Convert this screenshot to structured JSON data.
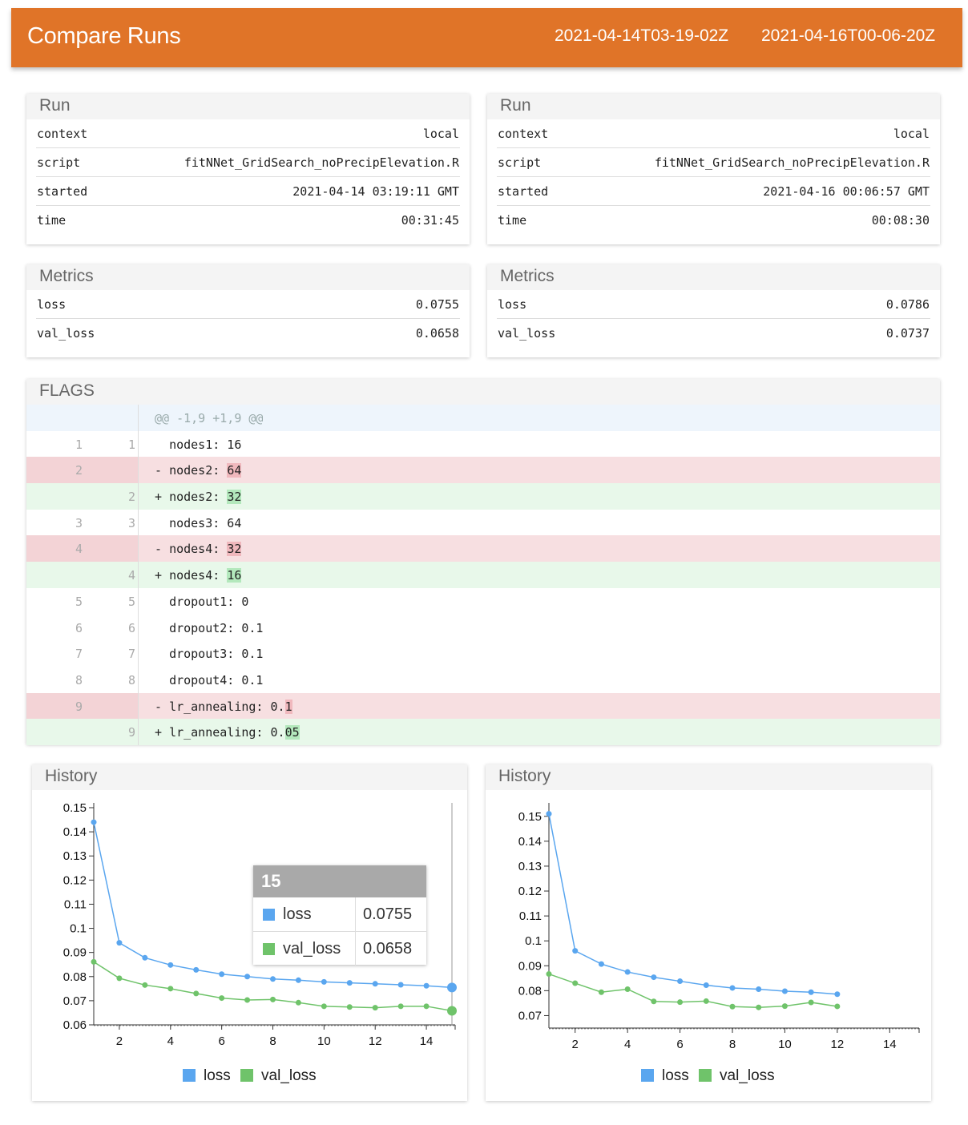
{
  "header": {
    "title": "Compare Runs",
    "run_a_id": "2021-04-14T03-19-02Z",
    "run_b_id": "2021-04-16T00-06-20Z"
  },
  "run_a": {
    "title": "Run",
    "rows": [
      {
        "key": "context",
        "value": "local"
      },
      {
        "key": "script",
        "value": "fitNNet_GridSearch_noPrecipElevation.R"
      },
      {
        "key": "started",
        "value": "2021-04-14 03:19:11 GMT"
      },
      {
        "key": "time",
        "value": "00:31:45"
      }
    ]
  },
  "run_b": {
    "title": "Run",
    "rows": [
      {
        "key": "context",
        "value": "local"
      },
      {
        "key": "script",
        "value": "fitNNet_GridSearch_noPrecipElevation.R"
      },
      {
        "key": "started",
        "value": "2021-04-16 00:06:57 GMT"
      },
      {
        "key": "time",
        "value": "00:08:30"
      }
    ]
  },
  "metrics_a": {
    "title": "Metrics",
    "rows": [
      {
        "key": "loss",
        "value": "0.0755"
      },
      {
        "key": "val_loss",
        "value": "0.0658"
      }
    ]
  },
  "metrics_b": {
    "title": "Metrics",
    "rows": [
      {
        "key": "loss",
        "value": "0.0786"
      },
      {
        "key": "val_loss",
        "value": "0.0737"
      }
    ]
  },
  "flags": {
    "title": "FLAGS",
    "hunk": "@@ -1,9 +1,9 @@",
    "lines": [
      {
        "type": "ctx",
        "old": "1",
        "new": "1",
        "prefix": " ",
        "text": "nodes1: 16",
        "hl": ""
      },
      {
        "type": "del",
        "old": "2",
        "new": "",
        "prefix": "-",
        "text": "nodes2: ",
        "hl": "64"
      },
      {
        "type": "add",
        "old": "",
        "new": "2",
        "prefix": "+",
        "text": "nodes2: ",
        "hl": "32"
      },
      {
        "type": "ctx",
        "old": "3",
        "new": "3",
        "prefix": " ",
        "text": "nodes3: 64",
        "hl": ""
      },
      {
        "type": "del",
        "old": "4",
        "new": "",
        "prefix": "-",
        "text": "nodes4: ",
        "hl": "32"
      },
      {
        "type": "add",
        "old": "",
        "new": "4",
        "prefix": "+",
        "text": "nodes4: ",
        "hl": "16"
      },
      {
        "type": "ctx",
        "old": "5",
        "new": "5",
        "prefix": " ",
        "text": "dropout1: 0",
        "hl": ""
      },
      {
        "type": "ctx",
        "old": "6",
        "new": "6",
        "prefix": " ",
        "text": "dropout2: 0.1",
        "hl": ""
      },
      {
        "type": "ctx",
        "old": "7",
        "new": "7",
        "prefix": " ",
        "text": "dropout3: 0.1",
        "hl": ""
      },
      {
        "type": "ctx",
        "old": "8",
        "new": "8",
        "prefix": " ",
        "text": "dropout4: 0.1",
        "hl": ""
      },
      {
        "type": "del",
        "old": "9",
        "new": "",
        "prefix": "-",
        "text": "lr_annealing: 0.",
        "hl": "1"
      },
      {
        "type": "add",
        "old": "",
        "new": "9",
        "prefix": "+",
        "text": "lr_annealing: 0.",
        "hl": "05"
      }
    ]
  },
  "colors": {
    "header_bg": "#e07428",
    "loss": "#5aa6ef",
    "val_loss": "#6fc36a",
    "diff_removed": "#f7dfe1",
    "diff_added": "#e8f8ea"
  },
  "tooltip": {
    "epoch": "15",
    "rows": [
      {
        "series": "loss",
        "value": "0.0755"
      },
      {
        "series": "val_loss",
        "value": "0.0658"
      }
    ]
  },
  "chart_data": [
    {
      "type": "line",
      "title": "History",
      "xlabel": "",
      "ylabel": "",
      "xlim": [
        1,
        15
      ],
      "ylim": [
        0.06,
        0.15
      ],
      "xticks": [
        2,
        4,
        6,
        8,
        10,
        12,
        14
      ],
      "yticks": [
        0.06,
        0.07,
        0.08,
        0.09,
        0.1,
        0.11,
        0.12,
        0.13,
        0.14,
        0.15
      ],
      "legend": "bottom",
      "x": [
        1,
        2,
        3,
        4,
        5,
        6,
        7,
        8,
        9,
        10,
        11,
        12,
        13,
        14,
        15
      ],
      "series": [
        {
          "name": "loss",
          "values": [
            0.144,
            0.094,
            0.0878,
            0.0848,
            0.0828,
            0.081,
            0.08,
            0.079,
            0.0785,
            0.0778,
            0.0774,
            0.077,
            0.0766,
            0.0762,
            0.0755
          ]
        },
        {
          "name": "val_loss",
          "values": [
            0.0861,
            0.0793,
            0.0765,
            0.075,
            0.073,
            0.0711,
            0.0703,
            0.0705,
            0.0692,
            0.0677,
            0.0674,
            0.0671,
            0.0677,
            0.0677,
            0.0658
          ]
        }
      ]
    },
    {
      "type": "line",
      "title": "History",
      "xlabel": "",
      "ylabel": "",
      "xlim": [
        1,
        15
      ],
      "ylim": [
        0.065,
        0.157
      ],
      "xticks": [
        2,
        4,
        6,
        8,
        10,
        12,
        14
      ],
      "yticks": [
        0.07,
        0.08,
        0.09,
        0.1,
        0.11,
        0.12,
        0.13,
        0.14,
        0.15
      ],
      "legend": "bottom",
      "x": [
        1,
        2,
        3,
        4,
        5,
        6,
        7,
        8,
        9,
        10,
        11,
        12
      ],
      "series": [
        {
          "name": "loss",
          "values": [
            0.151,
            0.096,
            0.0907,
            0.0875,
            0.0854,
            0.0838,
            0.0822,
            0.0811,
            0.0806,
            0.0798,
            0.0794,
            0.0786
          ]
        },
        {
          "name": "val_loss",
          "values": [
            0.0867,
            0.083,
            0.0794,
            0.0806,
            0.0757,
            0.0754,
            0.0758,
            0.0736,
            0.0733,
            0.0738,
            0.0753,
            0.0737
          ]
        }
      ]
    }
  ]
}
